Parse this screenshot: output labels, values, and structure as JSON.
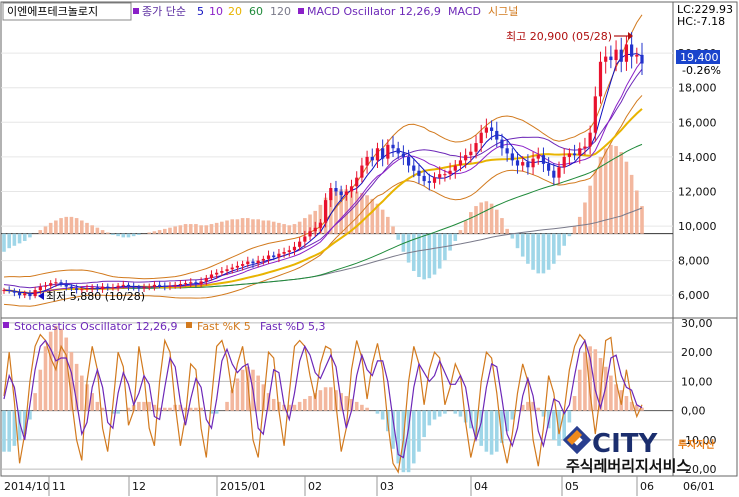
{
  "header": {
    "stock_name": "이엔에프테크놀로지",
    "ma_label": "종가 단순",
    "ma_periods": [
      "5",
      "10",
      "20",
      "60",
      "120"
    ],
    "macd_label": "MACD Oscillator 12,26,9",
    "macd_name": "MACD",
    "signal_name": "시그널"
  },
  "readouts": {
    "lc": "LC:229.93",
    "hc": "HC:-7.18",
    "current_price": "19,400",
    "change_pct": "-0.26%"
  },
  "annotations": {
    "high": "최고 20,900 (05/28)",
    "low": "최저 5,880 (10/28)"
  },
  "stochastic": {
    "label": "Stochastics Oscillator 12,26,9",
    "fast_k": "Fast %K 5",
    "fast_d": "Fast %D 5,3"
  },
  "watermark": {
    "brand": "CITY",
    "small": "투자자산",
    "sub": "주식레버리지서비스"
  },
  "colors": {
    "up": "#e8112d",
    "down": "#2233cc",
    "ma5": "#1010c0",
    "ma10": "#8a20c8",
    "ma20": "#e8b400",
    "ma60": "#1f8a3a",
    "ma120": "#7a7a8a",
    "macd_line": "#6d28b8",
    "signal_line": "#d27a1e",
    "osc_pos": "#f3b79e",
    "osc_neg": "#9fd6e8"
  },
  "chart_data": [
    {
      "type": "candlestick",
      "name": "price",
      "y_ticks": [
        6000,
        8000,
        10000,
        12000,
        14000,
        16000,
        18000,
        20000
      ],
      "y_tick_labels": [
        "6,000",
        "8,000",
        "10,000",
        "12,000",
        "14,000",
        "16,000",
        "18,000",
        "20,000"
      ],
      "ylim": [
        4800,
        21800
      ],
      "x_labels": [
        "2014/10",
        "11",
        "12",
        "2015/01",
        "02",
        "03",
        "04",
        "05",
        "06",
        "06/01"
      ],
      "low_point": {
        "date": "10/28",
        "value": 5880
      },
      "high_point": {
        "date": "05/28",
        "value": 20900
      },
      "last_close": 19400,
      "change_pct": -0.26,
      "closes": [
        6300,
        6250,
        6150,
        6000,
        6100,
        5950,
        6300,
        6500,
        6550,
        6700,
        6750,
        6650,
        6500,
        6400,
        6300,
        6350,
        6400,
        6450,
        6350,
        6500,
        6450,
        6450,
        6550,
        6600,
        6500,
        6450,
        6400,
        6450,
        6500,
        6600,
        6550,
        6500,
        6550,
        6600,
        6650,
        6700,
        6750,
        6650,
        6800,
        7000,
        7200,
        7300,
        7400,
        7500,
        7600,
        7700,
        7800,
        7950,
        7850,
        8000,
        8100,
        8300,
        8200,
        8400,
        8500,
        8600,
        8800,
        9100,
        9400,
        9700,
        9900,
        10200,
        11500,
        12200,
        12000,
        11800,
        12000,
        12300,
        12800,
        13500,
        14000,
        13800,
        14500,
        13900,
        14700,
        14500,
        14200,
        14000,
        13500,
        13200,
        12900,
        12600,
        12500,
        12800,
        13000,
        13000,
        13200,
        13500,
        13800,
        14100,
        14300,
        14800,
        15400,
        15700,
        15500,
        15000,
        14500,
        14200,
        13800,
        13500,
        13700,
        13400,
        13900,
        14100,
        13600,
        13200,
        12800,
        13400,
        14000,
        14200,
        14100,
        14500,
        14600,
        15400,
        17500,
        19500,
        19800,
        19600,
        20200,
        19500,
        20500,
        19800,
        19900,
        19400
      ]
    },
    {
      "type": "bar",
      "name": "MACD oscillator (price panel overlay)",
      "values": [
        -1.5,
        -1.2,
        -1.0,
        -0.8,
        -0.6,
        -0.3,
        0.0,
        0.3,
        0.6,
        0.9,
        1.1,
        1.3,
        1.4,
        1.4,
        1.3,
        1.1,
        0.9,
        0.7,
        0.5,
        0.3,
        0.1,
        -0.1,
        -0.2,
        -0.3,
        -0.3,
        -0.2,
        -0.1,
        0.0,
        0.1,
        0.2,
        0.3,
        0.4,
        0.5,
        0.6,
        0.7,
        0.8,
        0.8,
        0.8,
        0.7,
        0.7,
        0.8,
        0.9,
        1.0,
        1.1,
        1.2,
        1.2,
        1.3,
        1.3,
        1.2,
        1.2,
        1.1,
        1.1,
        1.0,
        0.9,
        0.8,
        0.7,
        0.8,
        1.0,
        1.3,
        1.6,
        1.9,
        2.4,
        3.0,
        3.4,
        3.6,
        3.7,
        3.7,
        3.6,
        3.5,
        3.4,
        3.2,
        2.9,
        2.5,
        2.0,
        1.4,
        0.6,
        -0.5,
        -1.5,
        -2.4,
        -3.1,
        -3.6,
        -3.8,
        -3.7,
        -3.4,
        -2.9,
        -2.2,
        -1.4,
        -0.6,
        0.3,
        1.1,
        1.8,
        2.3,
        2.6,
        2.7,
        2.5,
        2.0,
        1.3,
        0.4,
        -0.4,
        -1.2,
        -1.9,
        -2.5,
        -3.0,
        -3.3,
        -3.3,
        -3.0,
        -2.5,
        -1.8,
        -1.0,
        -0.2,
        0.6,
        1.4,
        2.6,
        4.0,
        5.3,
        6.4,
        7.1,
        7.4,
        7.3,
        6.8,
        6.0,
        4.9,
        3.6,
        2.3
      ]
    },
    {
      "type": "line",
      "name": "stochastic",
      "y_ticks": [
        -20,
        -10,
        0,
        10,
        20,
        30
      ],
      "y_tick_labels": [
        "-20,00",
        "-10,00",
        "0,00",
        "10,00",
        "20,00",
        "30,00"
      ],
      "ylim": [
        -22,
        31
      ],
      "fast_k": [
        5,
        20,
        3,
        -18,
        -8,
        10,
        22,
        26,
        24,
        18,
        14,
        22,
        19,
        4,
        -10,
        -17,
        10,
        22,
        14,
        -6,
        -14,
        2,
        20,
        15,
        -5,
        0,
        22,
        12,
        -6,
        -12,
        10,
        24,
        20,
        2,
        -12,
        -2,
        16,
        14,
        -6,
        -16,
        4,
        22,
        24,
        18,
        6,
        16,
        22,
        10,
        -10,
        -16,
        2,
        20,
        18,
        0,
        -12,
        6,
        22,
        24,
        22,
        12,
        4,
        16,
        22,
        21,
        2,
        -14,
        -6,
        14,
        24,
        18,
        4,
        16,
        23,
        14,
        -4,
        -18,
        -21,
        -10,
        10,
        22,
        16,
        2,
        14,
        20,
        18,
        2,
        8,
        16,
        12,
        -4,
        -16,
        -8,
        10,
        20,
        18,
        6,
        -10,
        -18,
        -8,
        6,
        16,
        10,
        -10,
        -19,
        -6,
        12,
        6,
        -8,
        0,
        14,
        22,
        26,
        24,
        6,
        -8,
        6,
        24,
        25,
        10,
        2,
        14,
        4,
        -2,
        2
      ],
      "fast_d": [
        4,
        12,
        8,
        -4,
        -10,
        2,
        14,
        22,
        24,
        21,
        17,
        18,
        18,
        13,
        3,
        -8,
        -4,
        8,
        14,
        8,
        -4,
        -6,
        6,
        13,
        9,
        2,
        6,
        12,
        9,
        -2,
        -3,
        8,
        18,
        15,
        3,
        -5,
        4,
        11,
        8,
        -3,
        -6,
        4,
        17,
        21,
        16,
        13,
        15,
        16,
        7,
        -6,
        -8,
        3,
        14,
        13,
        2,
        -3,
        6,
        17,
        22,
        19,
        13,
        11,
        15,
        19,
        15,
        3,
        -6,
        0,
        12,
        19,
        14,
        12,
        17,
        17,
        10,
        -3,
        -15,
        -16,
        -6,
        8,
        16,
        13,
        10,
        12,
        17,
        13,
        9,
        9,
        12,
        8,
        -3,
        -10,
        -4,
        8,
        16,
        15,
        4,
        -8,
        -12,
        -6,
        5,
        11,
        5,
        -7,
        -12,
        -4,
        4,
        3,
        -1,
        2,
        12,
        21,
        24,
        18,
        7,
        1,
        8,
        18,
        19,
        12,
        8,
        7,
        2,
        1
      ],
      "oscillator": [
        -14,
        -14,
        -12,
        -10,
        -8,
        -3,
        6,
        14,
        22,
        27,
        29,
        28,
        25,
        20,
        16,
        12,
        9,
        6,
        3,
        1,
        0,
        -1,
        -1,
        0,
        1,
        2,
        3,
        3,
        3,
        2,
        1,
        1,
        1,
        2,
        2,
        1,
        1,
        1,
        1,
        0,
        -1,
        -1,
        0,
        3,
        7,
        11,
        14,
        15,
        14,
        12,
        9,
        6,
        4,
        3,
        2,
        2,
        2,
        3,
        4,
        5,
        6,
        7,
        8,
        8,
        7,
        6,
        5,
        4,
        3,
        2,
        1,
        0,
        -1,
        -3,
        -7,
        -13,
        -18,
        -21,
        -21,
        -18,
        -14,
        -9,
        -5,
        -3,
        -2,
        -1,
        0,
        -1,
        -2,
        -4,
        -6,
        -9,
        -12,
        -14,
        -15,
        -14,
        -11,
        -7,
        -3,
        0,
        2,
        3,
        3,
        1,
        -2,
        -6,
        -10,
        -12,
        -10,
        -4,
        5,
        14,
        20,
        22,
        21,
        18,
        15,
        12,
        9,
        7,
        5,
        3,
        2,
        1
      ]
    }
  ]
}
